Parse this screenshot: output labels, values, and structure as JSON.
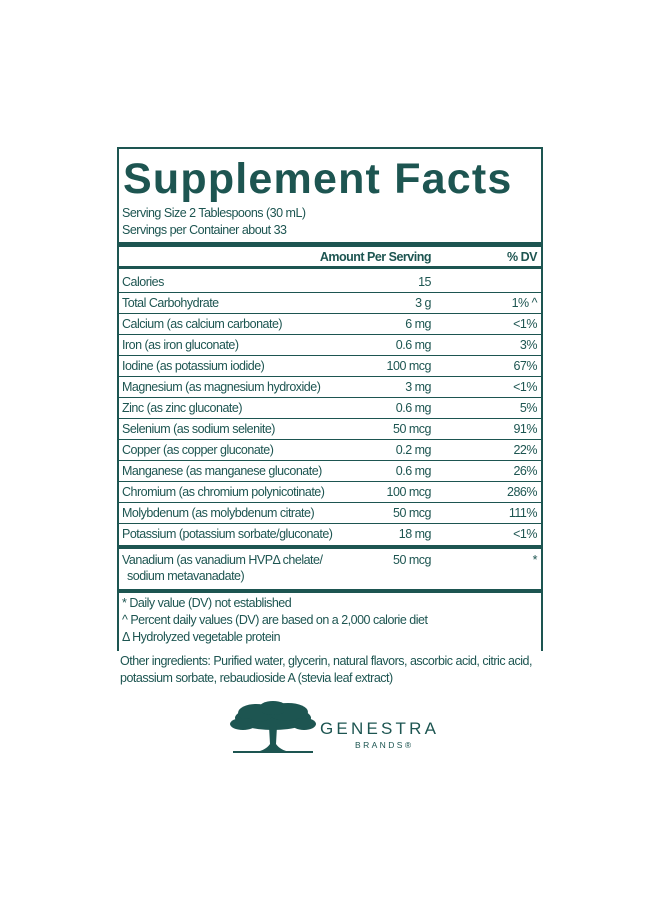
{
  "label": {
    "title": "Supplement Facts",
    "serving_size": "Serving Size 2 Tablespoons (30 mL)",
    "servings_per_container": "Servings per Container about 33",
    "header": {
      "amount": "Amount Per Serving",
      "dv": "% DV"
    },
    "rows": [
      {
        "name": "Calories",
        "amount": "15",
        "dv": ""
      },
      {
        "name": "Total Carbohydrate",
        "amount": "3 g",
        "dv": "1% ^"
      },
      {
        "name": "Calcium (as calcium carbonate)",
        "amount": "6 mg",
        "dv": "<1%"
      },
      {
        "name": "Iron (as iron gluconate)",
        "amount": "0.6 mg",
        "dv": "3%"
      },
      {
        "name": "Iodine (as potassium iodide)",
        "amount": "100 mcg",
        "dv": "67%"
      },
      {
        "name": "Magnesium (as magnesium hydroxide)",
        "amount": "3 mg",
        "dv": "<1%"
      },
      {
        "name": "Zinc (as zinc gluconate)",
        "amount": "0.6 mg",
        "dv": "5%"
      },
      {
        "name": "Selenium (as sodium selenite)",
        "amount": "50 mcg",
        "dv": "91%"
      },
      {
        "name": "Copper (as copper gluconate)",
        "amount": "0.2 mg",
        "dv": "22%"
      },
      {
        "name": "Manganese (as manganese gluconate)",
        "amount": "0.6 mg",
        "dv": "26%"
      },
      {
        "name": "Chromium (as chromium polynicotinate)",
        "amount": "100 mcg",
        "dv": "286%"
      },
      {
        "name": "Molybdenum (as molybdenum citrate)",
        "amount": "50 mcg",
        "dv": "111%"
      },
      {
        "name": "Potassium (potassium sorbate/gluconate)",
        "amount": "18 mg",
        "dv": "<1%"
      }
    ],
    "special_row": {
      "name": "Vanadium (as vanadium HVPΔ chelate/ sodium metavanadate)",
      "amount": "50 mcg",
      "dv": "*"
    },
    "footnotes": [
      "* Daily value (DV) not established",
      "^ Percent daily values (DV) are based on a 2,000 calorie diet",
      "Δ Hydrolyzed vegetable protein"
    ],
    "other_ingredients": "Other ingredients: Purified water, glycerin, natural flavors, ascorbic acid, citric acid, potassium sorbate, rebaudioside A (stevia leaf extract)"
  },
  "brand": {
    "name": "GENESTRA",
    "sub": "BRANDS®"
  }
}
